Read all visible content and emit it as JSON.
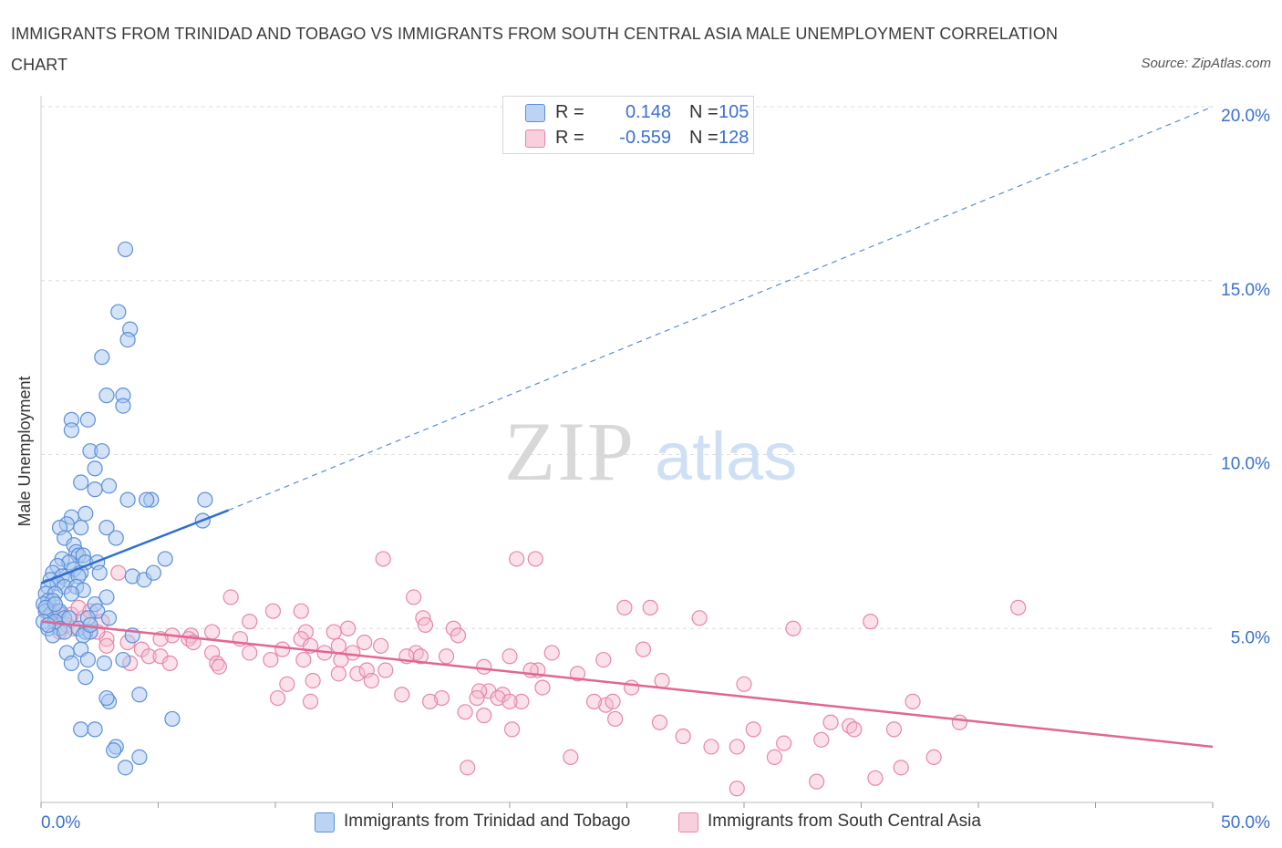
{
  "title": "IMMIGRANTS FROM TRINIDAD AND TOBAGO VS IMMIGRANTS FROM SOUTH CENTRAL ASIA MALE UNEMPLOYMENT CORRELATION CHART",
  "source": "Source: ZipAtlas.com",
  "watermark": {
    "zip": "ZIP",
    "atlas": "atlas"
  },
  "legend": {
    "rows": [
      {
        "r_label": "R =",
        "r_value": "0.148",
        "n_label": "N =",
        "n_value": "105"
      },
      {
        "r_label": "R =",
        "r_value": "-0.559",
        "n_label": "N =",
        "n_value": "128"
      }
    ]
  },
  "colors": {
    "series1_fill": "#a9c8f0",
    "series1_stroke": "#5b8fd8",
    "series1_line": "#2f6fd1",
    "series2_fill": "#f5bcd0",
    "series2_stroke": "#e886a8",
    "series2_line": "#e06694",
    "tick_label": "#3a6fd0",
    "grid": "#dcdcdc"
  },
  "chart_data": {
    "type": "scatter",
    "title": "IMMIGRANTS FROM TRINIDAD AND TOBAGO VS IMMIGRANTS FROM SOUTH CENTRAL ASIA MALE UNEMPLOYMENT CORRELATION CHART",
    "xlabel": "",
    "ylabel": "Male Unemployment",
    "xlim": [
      0,
      50
    ],
    "ylim": [
      0,
      20.0
    ],
    "x_tick_labels": [
      "0.0%",
      "50.0%"
    ],
    "y_ticks": [
      5,
      10,
      15,
      20
    ],
    "y_tick_labels": [
      "5.0%",
      "10.0%",
      "15.0%",
      "20.0%"
    ],
    "grid": "horizontal dashed",
    "legend_position": "top-center",
    "series": [
      {
        "name": "Immigrants from Trinidad and Tobago",
        "R": 0.148,
        "N": 105,
        "trend": {
          "x": [
            0.0,
            8.0
          ],
          "y": [
            6.3,
            8.4
          ],
          "extended_x": [
            8.0,
            50.0
          ],
          "extended_y": [
            8.4,
            20.0
          ]
        },
        "points": [
          [
            3.6,
            15.9
          ],
          [
            3.3,
            14.1
          ],
          [
            3.8,
            13.6
          ],
          [
            3.7,
            13.3
          ],
          [
            2.6,
            12.8
          ],
          [
            2.8,
            11.7
          ],
          [
            3.5,
            11.7
          ],
          [
            3.5,
            11.4
          ],
          [
            1.3,
            11.0
          ],
          [
            2.0,
            11.0
          ],
          [
            1.3,
            10.7
          ],
          [
            2.1,
            10.1
          ],
          [
            2.6,
            10.1
          ],
          [
            2.3,
            9.6
          ],
          [
            1.7,
            9.2
          ],
          [
            2.9,
            9.1
          ],
          [
            2.3,
            9.0
          ],
          [
            3.7,
            8.7
          ],
          [
            4.7,
            8.7
          ],
          [
            4.5,
            8.7
          ],
          [
            7.0,
            8.7
          ],
          [
            1.9,
            8.3
          ],
          [
            1.3,
            8.2
          ],
          [
            1.1,
            8.0
          ],
          [
            6.9,
            8.1
          ],
          [
            0.8,
            7.9
          ],
          [
            1.7,
            7.9
          ],
          [
            2.8,
            7.9
          ],
          [
            1.0,
            7.6
          ],
          [
            1.4,
            7.4
          ],
          [
            3.2,
            7.6
          ],
          [
            1.5,
            7.2
          ],
          [
            1.6,
            7.1
          ],
          [
            1.8,
            7.1
          ],
          [
            0.9,
            7.0
          ],
          [
            1.2,
            6.9
          ],
          [
            5.3,
            7.0
          ],
          [
            1.9,
            6.9
          ],
          [
            0.7,
            6.8
          ],
          [
            1.4,
            6.7
          ],
          [
            1.7,
            6.6
          ],
          [
            0.5,
            6.6
          ],
          [
            0.9,
            6.5
          ],
          [
            1.1,
            6.4
          ],
          [
            1.6,
            6.5
          ],
          [
            2.4,
            6.9
          ],
          [
            0.4,
            6.4
          ],
          [
            0.7,
            6.3
          ],
          [
            1.0,
            6.2
          ],
          [
            0.3,
            6.2
          ],
          [
            1.5,
            6.2
          ],
          [
            1.8,
            6.1
          ],
          [
            2.5,
            6.6
          ],
          [
            0.2,
            6.0
          ],
          [
            0.6,
            6.0
          ],
          [
            1.3,
            6.0
          ],
          [
            3.9,
            6.5
          ],
          [
            4.4,
            6.4
          ],
          [
            4.8,
            6.6
          ],
          [
            0.3,
            5.8
          ],
          [
            0.5,
            5.8
          ],
          [
            0.1,
            5.7
          ],
          [
            0.7,
            5.5
          ],
          [
            2.3,
            5.7
          ],
          [
            2.4,
            5.5
          ],
          [
            2.8,
            5.9
          ],
          [
            0.2,
            5.5
          ],
          [
            0.4,
            5.4
          ],
          [
            0.8,
            5.5
          ],
          [
            1.0,
            5.3
          ],
          [
            0.1,
            5.2
          ],
          [
            0.6,
            5.2
          ],
          [
            1.2,
            5.3
          ],
          [
            2.0,
            5.3
          ],
          [
            2.9,
            5.3
          ],
          [
            0.3,
            5.0
          ],
          [
            0.8,
            5.0
          ],
          [
            1.6,
            5.0
          ],
          [
            1.9,
            4.9
          ],
          [
            2.1,
            4.9
          ],
          [
            0.5,
            4.8
          ],
          [
            1.8,
            4.8
          ],
          [
            3.9,
            4.8
          ],
          [
            1.7,
            4.4
          ],
          [
            1.1,
            4.3
          ],
          [
            2.0,
            4.1
          ],
          [
            1.3,
            4.0
          ],
          [
            3.5,
            4.1
          ],
          [
            2.7,
            4.0
          ],
          [
            1.9,
            3.6
          ],
          [
            2.9,
            2.9
          ],
          [
            2.8,
            3.0
          ],
          [
            4.2,
            3.1
          ],
          [
            5.6,
            2.4
          ],
          [
            1.7,
            2.1
          ],
          [
            2.3,
            2.1
          ],
          [
            3.2,
            1.6
          ],
          [
            3.1,
            1.5
          ],
          [
            4.2,
            1.3
          ],
          [
            3.6,
            1.0
          ],
          [
            0.3,
            5.1
          ],
          [
            0.2,
            5.6
          ],
          [
            1.0,
            4.9
          ],
          [
            0.6,
            5.7
          ],
          [
            2.1,
            5.1
          ]
        ]
      },
      {
        "name": "Immigrants from South Central Asia",
        "R": -0.559,
        "N": 128,
        "trend": {
          "x": [
            0.0,
            50.0
          ],
          "y": [
            5.2,
            1.6
          ]
        },
        "points": [
          [
            14.6,
            7.0
          ],
          [
            20.3,
            7.0
          ],
          [
            21.1,
            7.0
          ],
          [
            3.3,
            6.6
          ],
          [
            15.9,
            5.9
          ],
          [
            8.1,
            5.9
          ],
          [
            24.9,
            5.6
          ],
          [
            26.0,
            5.6
          ],
          [
            41.7,
            5.6
          ],
          [
            9.9,
            5.5
          ],
          [
            11.1,
            5.5
          ],
          [
            0.5,
            5.5
          ],
          [
            0.9,
            5.4
          ],
          [
            1.3,
            5.4
          ],
          [
            16.3,
            5.3
          ],
          [
            28.1,
            5.3
          ],
          [
            35.4,
            5.2
          ],
          [
            1.8,
            5.3
          ],
          [
            2.6,
            5.2
          ],
          [
            16.4,
            5.1
          ],
          [
            8.9,
            5.2
          ],
          [
            13.1,
            5.0
          ],
          [
            17.6,
            5.0
          ],
          [
            32.1,
            5.0
          ],
          [
            11.3,
            4.9
          ],
          [
            12.5,
            4.9
          ],
          [
            17.8,
            4.8
          ],
          [
            7.3,
            4.9
          ],
          [
            6.4,
            4.8
          ],
          [
            6.3,
            4.7
          ],
          [
            5.6,
            4.8
          ],
          [
            8.5,
            4.7
          ],
          [
            2.8,
            4.7
          ],
          [
            5.1,
            4.7
          ],
          [
            11.1,
            4.7
          ],
          [
            6.5,
            4.6
          ],
          [
            3.7,
            4.6
          ],
          [
            2.8,
            4.5
          ],
          [
            4.3,
            4.4
          ],
          [
            13.8,
            4.6
          ],
          [
            14.5,
            4.5
          ],
          [
            8.9,
            4.3
          ],
          [
            10.3,
            4.4
          ],
          [
            11.5,
            4.5
          ],
          [
            7.3,
            4.3
          ],
          [
            12.7,
            4.5
          ],
          [
            16.0,
            4.3
          ],
          [
            21.8,
            4.3
          ],
          [
            25.7,
            4.4
          ],
          [
            12.1,
            4.3
          ],
          [
            13.3,
            4.3
          ],
          [
            15.6,
            4.2
          ],
          [
            16.2,
            4.2
          ],
          [
            17.3,
            4.2
          ],
          [
            24.0,
            4.1
          ],
          [
            20.0,
            4.2
          ],
          [
            4.6,
            4.2
          ],
          [
            5.1,
            4.2
          ],
          [
            3.8,
            4.0
          ],
          [
            5.5,
            4.0
          ],
          [
            7.5,
            4.0
          ],
          [
            7.6,
            3.9
          ],
          [
            9.8,
            4.1
          ],
          [
            11.2,
            4.1
          ],
          [
            12.8,
            4.1
          ],
          [
            18.9,
            3.9
          ],
          [
            21.2,
            3.8
          ],
          [
            20.9,
            3.8
          ],
          [
            22.9,
            3.7
          ],
          [
            14.7,
            3.8
          ],
          [
            12.7,
            3.7
          ],
          [
            13.5,
            3.7
          ],
          [
            13.9,
            3.8
          ],
          [
            14.1,
            3.5
          ],
          [
            26.5,
            3.5
          ],
          [
            25.2,
            3.3
          ],
          [
            30.0,
            3.4
          ],
          [
            11.6,
            3.5
          ],
          [
            10.5,
            3.4
          ],
          [
            15.4,
            3.1
          ],
          [
            17.1,
            3.0
          ],
          [
            21.4,
            3.3
          ],
          [
            19.7,
            3.1
          ],
          [
            19.1,
            3.2
          ],
          [
            18.7,
            3.2
          ],
          [
            18.6,
            3.0
          ],
          [
            20.5,
            2.9
          ],
          [
            19.5,
            3.0
          ],
          [
            24.1,
            2.8
          ],
          [
            24.4,
            2.9
          ],
          [
            23.6,
            2.9
          ],
          [
            16.6,
            2.9
          ],
          [
            20.0,
            2.9
          ],
          [
            10.1,
            3.0
          ],
          [
            11.5,
            2.9
          ],
          [
            37.2,
            2.9
          ],
          [
            18.9,
            2.5
          ],
          [
            18.1,
            2.6
          ],
          [
            24.5,
            2.4
          ],
          [
            39.2,
            2.3
          ],
          [
            26.4,
            2.3
          ],
          [
            33.7,
            2.3
          ],
          [
            30.4,
            2.1
          ],
          [
            34.5,
            2.2
          ],
          [
            34.7,
            2.1
          ],
          [
            20.1,
            2.1
          ],
          [
            36.4,
            2.1
          ],
          [
            27.4,
            1.9
          ],
          [
            33.3,
            1.8
          ],
          [
            31.7,
            1.7
          ],
          [
            29.7,
            1.6
          ],
          [
            38.1,
            1.3
          ],
          [
            31.3,
            1.3
          ],
          [
            36.7,
            1.0
          ],
          [
            35.6,
            0.7
          ],
          [
            33.1,
            0.6
          ],
          [
            29.7,
            0.4
          ],
          [
            18.2,
            1.0
          ],
          [
            22.6,
            1.3
          ],
          [
            28.6,
            1.6
          ],
          [
            0.6,
            5.3
          ],
          [
            1.1,
            5.1
          ],
          [
            1.6,
            5.6
          ],
          [
            2.1,
            5.5
          ],
          [
            0.8,
            4.9
          ],
          [
            1.4,
            5.0
          ],
          [
            2.4,
            4.9
          ],
          [
            0.3,
            5.5
          ]
        ]
      }
    ]
  },
  "bottom_legend": {
    "items": [
      "Immigrants from Trinidad and Tobago",
      "Immigrants from South Central Asia"
    ]
  }
}
